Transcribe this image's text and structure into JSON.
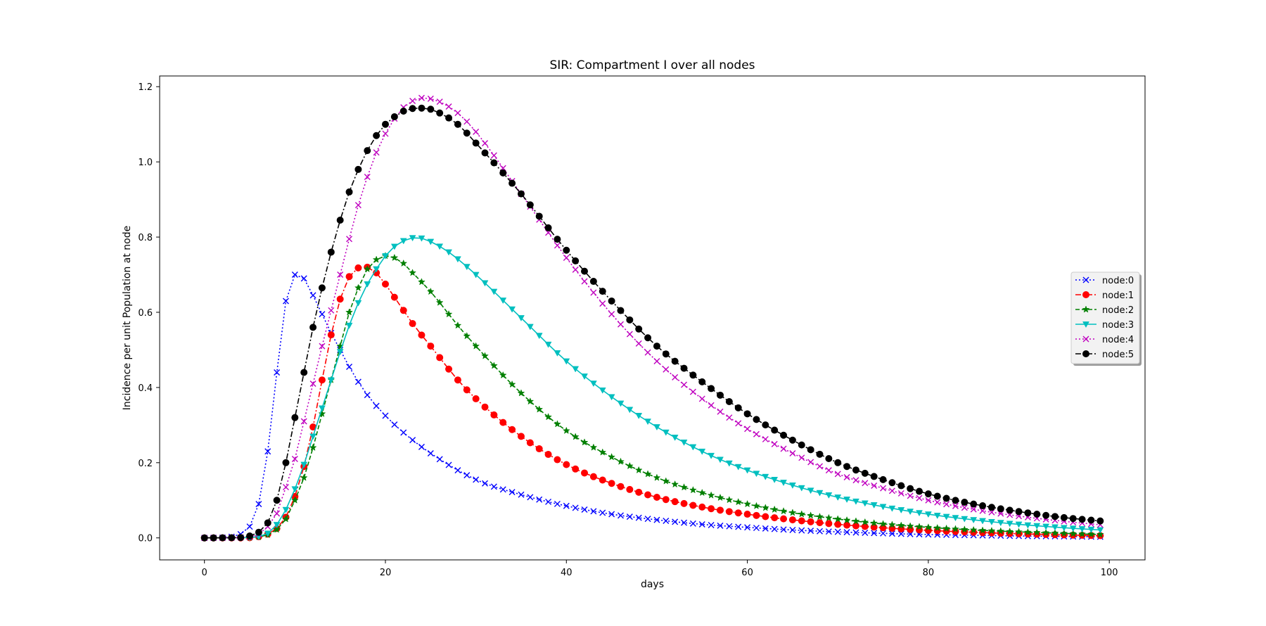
{
  "chart_data": {
    "type": "line",
    "title": "SIR: Compartment I over all nodes",
    "xlabel": "days",
    "ylabel": "Incidence per unit Population at node",
    "xlim": [
      -4.95,
      103.95
    ],
    "ylim": [
      -0.0585,
      1.2285
    ],
    "xticks": [
      0,
      20,
      40,
      60,
      80,
      100
    ],
    "yticks": [
      0.0,
      0.2,
      0.4,
      0.6,
      0.8,
      1.0,
      1.2
    ],
    "xtick_labels": [
      "0",
      "20",
      "40",
      "60",
      "80",
      "100"
    ],
    "ytick_labels": [
      "0.0",
      "0.2",
      "0.4",
      "0.6",
      "0.8",
      "1.0",
      "1.2"
    ],
    "grid": false,
    "legend_position": "center-right",
    "days": 100,
    "series": [
      {
        "name": "node:0",
        "color": "#0000ff",
        "linestyle": "dotted",
        "marker": "x",
        "anchors": [
          [
            0,
            0
          ],
          [
            2,
            0.001
          ],
          [
            3,
            0.003
          ],
          [
            4,
            0.01
          ],
          [
            5,
            0.03
          ],
          [
            6,
            0.09
          ],
          [
            7,
            0.23
          ],
          [
            8,
            0.44
          ],
          [
            9,
            0.63
          ],
          [
            10,
            0.7
          ],
          [
            11,
            0.69
          ],
          [
            12,
            0.645
          ],
          [
            13,
            0.595
          ],
          [
            14,
            0.545
          ],
          [
            15,
            0.5
          ],
          [
            16,
            0.455
          ],
          [
            17,
            0.415
          ],
          [
            18,
            0.38
          ],
          [
            20,
            0.325
          ],
          [
            22,
            0.28
          ],
          [
            25,
            0.225
          ],
          [
            30,
            0.155
          ],
          [
            35,
            0.115
          ],
          [
            40,
            0.085
          ],
          [
            45,
            0.063
          ],
          [
            50,
            0.048
          ],
          [
            55,
            0.036
          ],
          [
            60,
            0.028
          ],
          [
            65,
            0.021
          ],
          [
            70,
            0.016
          ],
          [
            75,
            0.012
          ],
          [
            80,
            0.009
          ],
          [
            85,
            0.007
          ],
          [
            90,
            0.005
          ],
          [
            95,
            0.004
          ],
          [
            99,
            0.003
          ]
        ]
      },
      {
        "name": "node:1",
        "color": "#ff0000",
        "linestyle": "dashdot",
        "marker": "circle",
        "anchors": [
          [
            0,
            0
          ],
          [
            4,
            0
          ],
          [
            6,
            0.003
          ],
          [
            7,
            0.01
          ],
          [
            8,
            0.025
          ],
          [
            9,
            0.055
          ],
          [
            10,
            0.11
          ],
          [
            11,
            0.19
          ],
          [
            12,
            0.295
          ],
          [
            13,
            0.42
          ],
          [
            14,
            0.54
          ],
          [
            15,
            0.635
          ],
          [
            16,
            0.695
          ],
          [
            17,
            0.718
          ],
          [
            18,
            0.72
          ],
          [
            19,
            0.705
          ],
          [
            20,
            0.675
          ],
          [
            21,
            0.64
          ],
          [
            22,
            0.605
          ],
          [
            23,
            0.57
          ],
          [
            25,
            0.51
          ],
          [
            28,
            0.42
          ],
          [
            30,
            0.37
          ],
          [
            35,
            0.27
          ],
          [
            40,
            0.195
          ],
          [
            45,
            0.145
          ],
          [
            50,
            0.108
          ],
          [
            55,
            0.082
          ],
          [
            60,
            0.063
          ],
          [
            65,
            0.048
          ],
          [
            70,
            0.036
          ],
          [
            75,
            0.027
          ],
          [
            80,
            0.02
          ],
          [
            85,
            0.015
          ],
          [
            90,
            0.011
          ],
          [
            95,
            0.008
          ],
          [
            99,
            0.006
          ]
        ]
      },
      {
        "name": "node:2",
        "color": "#007f00",
        "linestyle": "dashed",
        "marker": "star",
        "anchors": [
          [
            0,
            0
          ],
          [
            5,
            0.001
          ],
          [
            7,
            0.008
          ],
          [
            8,
            0.022
          ],
          [
            9,
            0.05
          ],
          [
            10,
            0.1
          ],
          [
            11,
            0.16
          ],
          [
            12,
            0.24
          ],
          [
            13,
            0.33
          ],
          [
            14,
            0.42
          ],
          [
            15,
            0.51
          ],
          [
            16,
            0.6
          ],
          [
            17,
            0.665
          ],
          [
            18,
            0.715
          ],
          [
            19,
            0.74
          ],
          [
            20,
            0.75
          ],
          [
            21,
            0.745
          ],
          [
            22,
            0.73
          ],
          [
            23,
            0.705
          ],
          [
            25,
            0.655
          ],
          [
            28,
            0.565
          ],
          [
            30,
            0.51
          ],
          [
            35,
            0.385
          ],
          [
            40,
            0.285
          ],
          [
            45,
            0.215
          ],
          [
            50,
            0.16
          ],
          [
            55,
            0.12
          ],
          [
            60,
            0.09
          ],
          [
            65,
            0.067
          ],
          [
            70,
            0.05
          ],
          [
            75,
            0.037
          ],
          [
            80,
            0.028
          ],
          [
            85,
            0.021
          ],
          [
            90,
            0.016
          ],
          [
            95,
            0.012
          ],
          [
            99,
            0.009
          ]
        ]
      },
      {
        "name": "node:3",
        "color": "#00bfbf",
        "linestyle": "solid",
        "marker": "triangle-down",
        "anchors": [
          [
            0,
            0
          ],
          [
            5,
            0.001
          ],
          [
            7,
            0.012
          ],
          [
            8,
            0.035
          ],
          [
            9,
            0.075
          ],
          [
            10,
            0.13
          ],
          [
            11,
            0.195
          ],
          [
            12,
            0.27
          ],
          [
            13,
            0.345
          ],
          [
            14,
            0.42
          ],
          [
            15,
            0.495
          ],
          [
            16,
            0.565
          ],
          [
            17,
            0.625
          ],
          [
            18,
            0.675
          ],
          [
            19,
            0.715
          ],
          [
            20,
            0.75
          ],
          [
            21,
            0.775
          ],
          [
            22,
            0.79
          ],
          [
            23,
            0.798
          ],
          [
            24,
            0.797
          ],
          [
            25,
            0.788
          ],
          [
            27,
            0.76
          ],
          [
            30,
            0.7
          ],
          [
            35,
            0.585
          ],
          [
            40,
            0.47
          ],
          [
            45,
            0.375
          ],
          [
            50,
            0.295
          ],
          [
            55,
            0.23
          ],
          [
            60,
            0.18
          ],
          [
            65,
            0.14
          ],
          [
            70,
            0.108
          ],
          [
            75,
            0.083
          ],
          [
            80,
            0.063
          ],
          [
            85,
            0.048
          ],
          [
            90,
            0.036
          ],
          [
            95,
            0.027
          ],
          [
            99,
            0.021
          ]
        ]
      },
      {
        "name": "node:4",
        "color": "#bf00bf",
        "linestyle": "dotted",
        "marker": "x",
        "anchors": [
          [
            0,
            0
          ],
          [
            5,
            0.002
          ],
          [
            6,
            0.01
          ],
          [
            7,
            0.03
          ],
          [
            8,
            0.065
          ],
          [
            9,
            0.135
          ],
          [
            10,
            0.21
          ],
          [
            11,
            0.31
          ],
          [
            12,
            0.41
          ],
          [
            13,
            0.51
          ],
          [
            14,
            0.605
          ],
          [
            15,
            0.7
          ],
          [
            16,
            0.795
          ],
          [
            17,
            0.885
          ],
          [
            18,
            0.96
          ],
          [
            19,
            1.025
          ],
          [
            20,
            1.075
          ],
          [
            21,
            1.115
          ],
          [
            22,
            1.145
          ],
          [
            23,
            1.162
          ],
          [
            24,
            1.17
          ],
          [
            25,
            1.168
          ],
          [
            26,
            1.16
          ],
          [
            28,
            1.13
          ],
          [
            30,
            1.08
          ],
          [
            35,
            0.915
          ],
          [
            40,
            0.745
          ],
          [
            45,
            0.595
          ],
          [
            50,
            0.47
          ],
          [
            55,
            0.37
          ],
          [
            60,
            0.29
          ],
          [
            65,
            0.225
          ],
          [
            70,
            0.17
          ],
          [
            75,
            0.132
          ],
          [
            80,
            0.1
          ],
          [
            85,
            0.076
          ],
          [
            90,
            0.058
          ],
          [
            95,
            0.044
          ],
          [
            99,
            0.035
          ]
        ]
      },
      {
        "name": "node:5",
        "color": "#000000",
        "linestyle": "dashdot",
        "marker": "circle",
        "anchors": [
          [
            0,
            0
          ],
          [
            4,
            0.001
          ],
          [
            5,
            0.005
          ],
          [
            6,
            0.015
          ],
          [
            7,
            0.04
          ],
          [
            8,
            0.1
          ],
          [
            9,
            0.2
          ],
          [
            10,
            0.32
          ],
          [
            11,
            0.44
          ],
          [
            12,
            0.56
          ],
          [
            13,
            0.665
          ],
          [
            14,
            0.76
          ],
          [
            15,
            0.845
          ],
          [
            16,
            0.92
          ],
          [
            17,
            0.98
          ],
          [
            18,
            1.03
          ],
          [
            19,
            1.07
          ],
          [
            20,
            1.1
          ],
          [
            21,
            1.12
          ],
          [
            22,
            1.135
          ],
          [
            23,
            1.142
          ],
          [
            24,
            1.143
          ],
          [
            25,
            1.14
          ],
          [
            26,
            1.13
          ],
          [
            28,
            1.1
          ],
          [
            30,
            1.05
          ],
          [
            35,
            0.915
          ],
          [
            40,
            0.765
          ],
          [
            45,
            0.63
          ],
          [
            50,
            0.51
          ],
          [
            55,
            0.415
          ],
          [
            60,
            0.33
          ],
          [
            65,
            0.26
          ],
          [
            70,
            0.2
          ],
          [
            75,
            0.155
          ],
          [
            80,
            0.117
          ],
          [
            85,
            0.09
          ],
          [
            90,
            0.07
          ],
          [
            95,
            0.054
          ],
          [
            99,
            0.045
          ]
        ]
      }
    ]
  }
}
